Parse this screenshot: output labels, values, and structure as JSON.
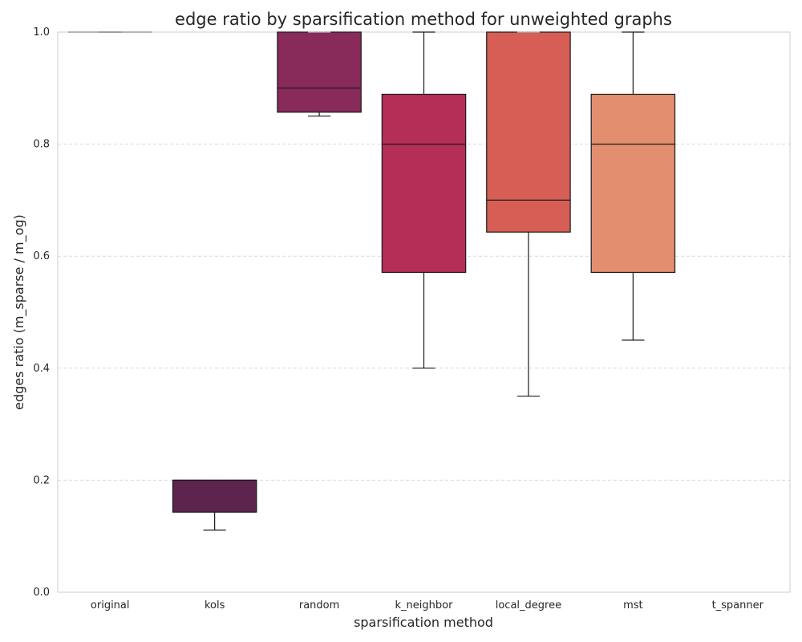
{
  "chart_data": {
    "type": "box",
    "title": "edge ratio by sparsification method for unweighted graphs",
    "xlabel": "sparsification method",
    "ylabel": "edges ratio (m_sparse / m_og)",
    "ylim": [
      0,
      1
    ],
    "yticks": [
      "0.0",
      "0.2",
      "0.4",
      "0.6",
      "0.8",
      "1.0"
    ],
    "grid": "horizontal-dashed",
    "categories": [
      "original",
      "kols",
      "random",
      "k_neighbor",
      "local_degree",
      "mst",
      "t_spanner"
    ],
    "boxes": [
      {
        "category": "original",
        "whisker_low": 1.0,
        "q1": 1.0,
        "median": 1.0,
        "q3": 1.0,
        "whisker_high": 1.0,
        "color": "#3b1f47"
      },
      {
        "category": "kols",
        "whisker_low": 0.111,
        "q1": 0.143,
        "median": 0.2,
        "q3": 0.2,
        "whisker_high": 0.2,
        "color": "#5c244e"
      },
      {
        "category": "random",
        "whisker_low": 0.85,
        "q1": 0.857,
        "median": 0.9,
        "q3": 1.0,
        "whisker_high": 1.0,
        "color": "#882a5a"
      },
      {
        "category": "k_neighbor",
        "whisker_low": 0.4,
        "q1": 0.571,
        "median": 0.8,
        "q3": 0.889,
        "whisker_high": 1.0,
        "color": "#b42e55"
      },
      {
        "category": "local_degree",
        "whisker_low": 0.35,
        "q1": 0.643,
        "median": 0.7,
        "q3": 1.0,
        "whisker_high": 1.0,
        "color": "#d75e54"
      },
      {
        "category": "mst",
        "whisker_low": 0.45,
        "q1": 0.571,
        "median": 0.8,
        "q3": 0.889,
        "whisker_high": 1.0,
        "color": "#e28e6f"
      },
      {
        "category": "t_spanner",
        "whisker_low": null,
        "q1": null,
        "median": null,
        "q3": null,
        "whisker_high": null,
        "color": "#ecb08f"
      }
    ]
  }
}
